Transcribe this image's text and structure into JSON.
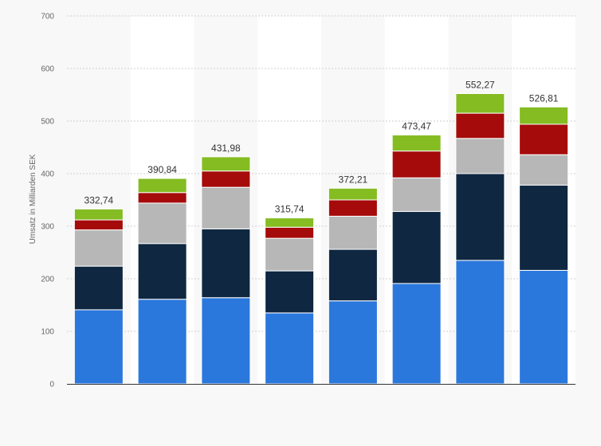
{
  "chart_data": {
    "type": "bar",
    "stacked": true,
    "title": "",
    "xlabel": "",
    "ylabel": "Umsatz in Milliarden SEK",
    "ylim": [
      0,
      700
    ],
    "yticks": [
      0,
      100,
      200,
      300,
      400,
      500,
      600,
      700
    ],
    "ytick_labels": [
      "0",
      "100",
      "200",
      "300",
      "400",
      "500",
      "600",
      "700"
    ],
    "categories": [
      "",
      "",
      "",
      "",
      "",
      "",
      "",
      ""
    ],
    "totals_labels": [
      "332,74",
      "390,84",
      "431,98",
      "315,74",
      "372,21",
      "473,47",
      "552,27",
      "526,81"
    ],
    "grid": true,
    "legend": "none",
    "series": [
      {
        "color": "#2b78dc",
        "values": [
          141,
          161,
          164,
          135,
          158,
          191,
          235,
          216
        ]
      },
      {
        "color": "#0f2740",
        "values": [
          83,
          106,
          131,
          80,
          98,
          137,
          165,
          162
        ]
      },
      {
        "color": "#b7b7b7",
        "values": [
          69,
          77,
          79,
          62,
          63,
          64,
          67,
          58
        ]
      },
      {
        "color": "#a50b0b",
        "values": [
          19,
          20,
          31,
          21,
          31,
          51,
          48,
          58
        ]
      },
      {
        "color": "#84bc22",
        "values": [
          20.74,
          26.84,
          26.98,
          17.74,
          22.21,
          30.47,
          37.27,
          32.81
        ]
      }
    ]
  }
}
